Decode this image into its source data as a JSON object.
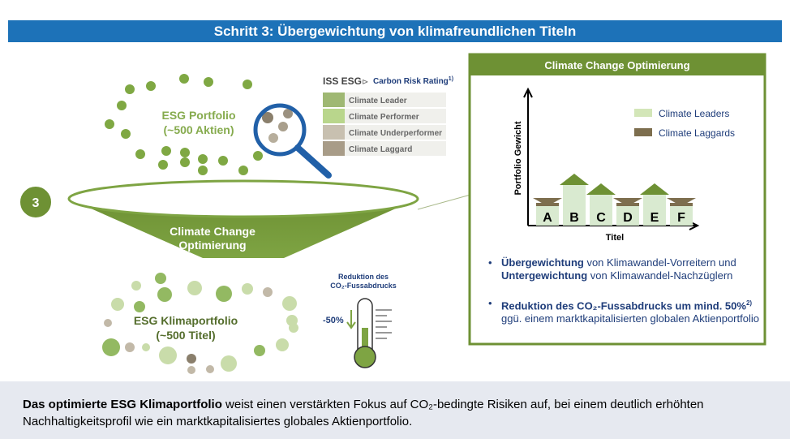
{
  "header": {
    "title": "Schritt 3: Übergewichtung von klimafreundlichen Titeln"
  },
  "step": "3",
  "esg_portfolio": {
    "title": "ESG Portfolio",
    "subtitle": "(~500 Aktien)"
  },
  "rating": {
    "brand": "ISS ESG",
    "title": "Carbon Risk Rating",
    "note": "1)",
    "items": [
      {
        "label": "Climate Leader",
        "color": "#9fb873"
      },
      {
        "label": "Climate Performer",
        "color": "#b9d68c"
      },
      {
        "label": "Climate Underperformer",
        "color": "#c8c0b0"
      },
      {
        "label": "Climate Laggard",
        "color": "#a89c88"
      }
    ]
  },
  "funnel": {
    "line1": "Climate Change",
    "line2": "Optimierung"
  },
  "reduction": {
    "line1": "Reduktion des",
    "line2": "CO₂-Fussabdrucks",
    "change": "-50%"
  },
  "climate_portfolio": {
    "title": "ESG Klimaportfolio",
    "subtitle": "(~500 Titel)"
  },
  "panel": {
    "title": "Climate Change Optimierung",
    "y_label": "Portfolio Gewicht",
    "x_label": "Titel",
    "legend": [
      {
        "label": "Climate Leaders",
        "color": "#d3e6b8"
      },
      {
        "label": "Climate Laggards",
        "color": "#7d6e4e"
      }
    ],
    "bars": [
      "A",
      "B",
      "C",
      "D",
      "E",
      "F"
    ],
    "bullets": [
      [
        "Übergewichtung",
        " von Klimawandel-Vorreitern und ",
        "Untergewichtung",
        " von Klimawandel-Nachzüglern"
      ],
      [
        "Reduktion des CO₂-Fussabdrucks um mind. 50%",
        "2)",
        " ggü. einem marktkapitalisierten globalen Aktienportfolio"
      ]
    ]
  },
  "footer": {
    "bold": "Das optimierte ESG Klimaportfolio",
    "text": " weist einen verstärkten Fokus auf CO₂-bedingte Risiken auf, bei einem deutlich erhöhten Nachhaltigkeitsprofil wie ein marktkapitalisiertes globales Aktienportfolio."
  }
}
